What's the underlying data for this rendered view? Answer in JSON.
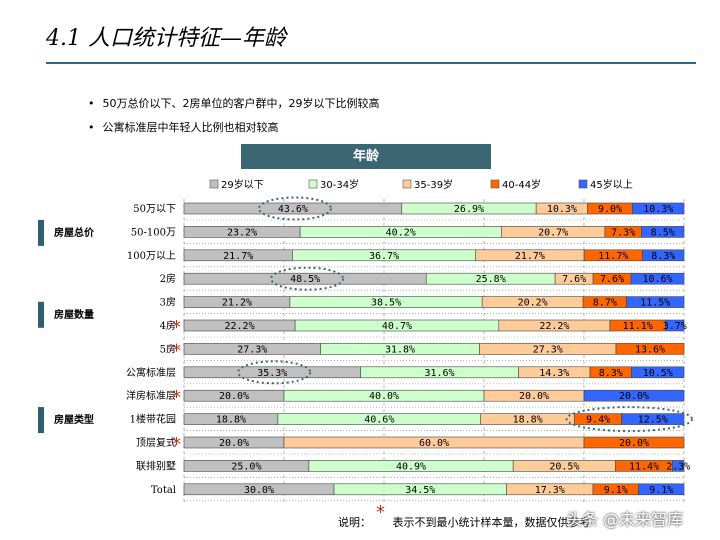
{
  "title": "4.1 人口统计特征—年龄",
  "bullets": [
    "50万总价以下、2房单位的客户群中，29岁以下比例较高",
    "公寓标准层中年轻人比例也相对较高"
  ],
  "note_label": "说明：",
  "note_text": "表示不到最小统计样本量，数据仅供参考",
  "note_star": "*",
  "watermark": "头条 @未来智库",
  "chart_data": {
    "type": "bar",
    "stacked": "percent",
    "orientation": "horizontal",
    "title": "年龄",
    "legend_position": "top",
    "series": [
      {
        "name": "29岁以下",
        "color": "#c0c0c0"
      },
      {
        "name": "30-34岁",
        "color": "#ccffcc"
      },
      {
        "name": "35-39岁",
        "color": "#ffcc99"
      },
      {
        "name": "40-44岁",
        "color": "#ff6600"
      },
      {
        "name": "45岁以上",
        "color": "#3366ff"
      }
    ],
    "groups": [
      {
        "label": "房屋总价",
        "rows": [
          0,
          1,
          2
        ]
      },
      {
        "label": "房屋数量",
        "rows": [
          3,
          4,
          5,
          6
        ]
      },
      {
        "label": "房屋类型",
        "rows": [
          7,
          8,
          9,
          10,
          11
        ]
      }
    ],
    "rows": [
      {
        "label": "50万以下",
        "values": [
          43.6,
          26.9,
          10.3,
          9.0,
          10.3
        ],
        "labels": [
          "43.6%",
          "26.9%",
          "10.3%",
          "9.0%",
          "10.3%"
        ],
        "star": false,
        "circle": 0
      },
      {
        "label": "50-100万",
        "values": [
          23.2,
          40.2,
          20.7,
          7.3,
          8.5
        ],
        "labels": [
          "23.2%",
          "40.2%",
          "20.7%",
          "7.3%",
          "8.5%"
        ],
        "star": false
      },
      {
        "label": "100万以上",
        "values": [
          21.7,
          36.7,
          21.7,
          11.7,
          8.3
        ],
        "labels": [
          "21.7%",
          "36.7%",
          "21.7%",
          "11.7%",
          "8.3%"
        ],
        "star": false
      },
      {
        "label": "2房",
        "values": [
          48.5,
          25.8,
          7.6,
          7.6,
          10.6
        ],
        "labels": [
          "48.5%",
          "25.8%",
          "7.6%",
          "7.6%",
          "10.6%"
        ],
        "star": false,
        "circle": 0
      },
      {
        "label": "3房",
        "values": [
          21.2,
          38.5,
          20.2,
          8.7,
          11.5
        ],
        "labels": [
          "21.2%",
          "38.5%",
          "20.2%",
          "8.7%",
          "11.5%"
        ],
        "star": false
      },
      {
        "label": "4房",
        "values": [
          22.2,
          40.7,
          22.2,
          11.1,
          3.7
        ],
        "labels": [
          "22.2%",
          "40.7%",
          "22.2%",
          "11.1%",
          "3.7%"
        ],
        "star": true
      },
      {
        "label": "5房",
        "values": [
          27.3,
          31.8,
          27.3,
          13.6,
          0.0
        ],
        "labels": [
          "27.3%",
          "31.8%",
          "27.3%",
          "13.6%",
          ""
        ],
        "star": true
      },
      {
        "label": "公寓标准层",
        "values": [
          35.3,
          31.6,
          14.3,
          8.3,
          10.5
        ],
        "labels": [
          "35.3%",
          "31.6%",
          "14.3%",
          "8.3%",
          "10.5%"
        ],
        "star": false,
        "circle": 0
      },
      {
        "label": "洋房标准层",
        "values": [
          20.0,
          40.0,
          20.0,
          0.0,
          20.0
        ],
        "labels": [
          "20.0%",
          "40.0%",
          "20.0%",
          "",
          "20.0%"
        ],
        "star": true
      },
      {
        "label": "1楼带花园",
        "values": [
          18.8,
          40.6,
          18.8,
          9.4,
          12.5
        ],
        "labels": [
          "18.8%",
          "40.6%",
          "18.8%",
          "9.4%",
          "12.5%"
        ],
        "star": false,
        "circle_pair": [
          3,
          4
        ]
      },
      {
        "label": "顶层复式",
        "values": [
          20.0,
          0.0,
          60.0,
          20.0,
          0.0
        ],
        "labels": [
          "20.0%",
          "",
          "60.0%",
          "20.0%",
          ""
        ],
        "star": true
      },
      {
        "label": "联排别墅",
        "values": [
          25.0,
          40.9,
          20.5,
          11.4,
          2.3
        ],
        "labels": [
          "25.0%",
          "40.9%",
          "20.5%",
          "11.4%",
          "2.3%"
        ],
        "star": false
      },
      {
        "label": "Total",
        "values": [
          30.0,
          34.5,
          17.3,
          9.1,
          9.1
        ],
        "labels": [
          "30.0%",
          "34.5%",
          "17.3%",
          "9.1%",
          "9.1%"
        ],
        "star": false
      }
    ]
  }
}
